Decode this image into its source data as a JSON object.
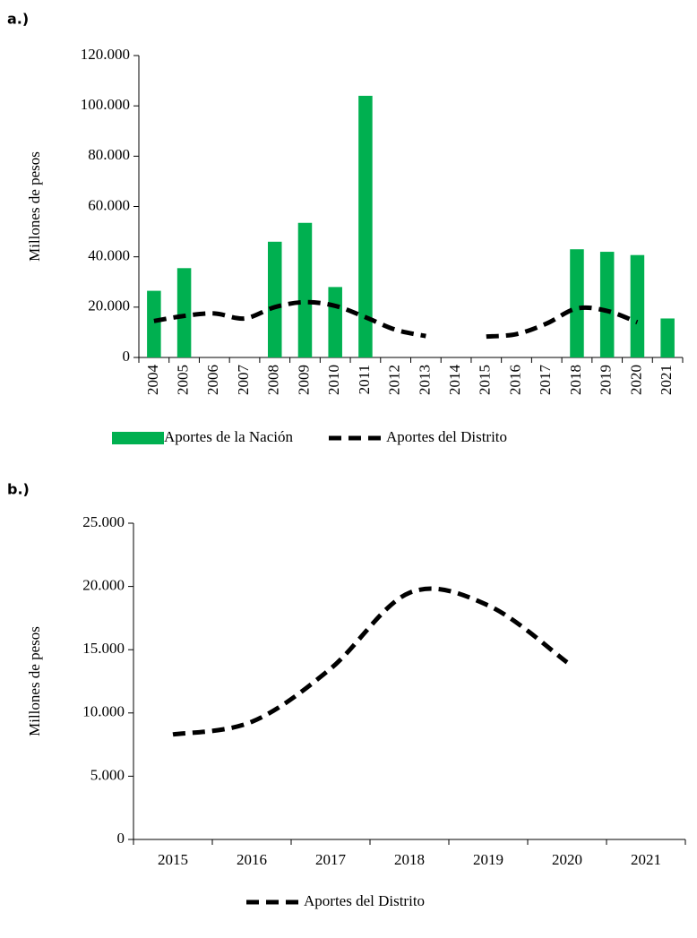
{
  "chart_data": [
    {
      "type": "bar",
      "label": "a.)",
      "ylabel": "Millones de pesos",
      "categories": [
        "2004",
        "2005",
        "2006",
        "2007",
        "2008",
        "2009",
        "2010",
        "2011",
        "2012",
        "2013",
        "2014",
        "2015",
        "2016",
        "2017",
        "2018",
        "2019",
        "2020",
        "2021"
      ],
      "series": [
        {
          "name": "Aportes de la Nación",
          "type": "bar",
          "color": "#00b050",
          "values": [
            26500,
            35500,
            null,
            null,
            46000,
            53500,
            28000,
            104000,
            null,
            null,
            null,
            null,
            null,
            null,
            43000,
            42000,
            40700,
            15500
          ]
        },
        {
          "name": "Aportes del Distrito",
          "type": "line",
          "color": "#000000",
          "values": [
            14500,
            16500,
            17500,
            15500,
            20000,
            22000,
            20500,
            16000,
            11000,
            8500,
            null,
            8300,
            9300,
            13500,
            19500,
            18500,
            14000,
            null
          ]
        }
      ],
      "ylim": [
        0,
        120000
      ],
      "yticks": [
        0,
        {
          "value": 20000,
          "label": "20.000"
        },
        {
          "value": 40000,
          "label": "40.000"
        },
        {
          "value": 60000,
          "label": "60.000"
        },
        {
          "value": 80000,
          "label": "80.000"
        },
        {
          "value": 100000,
          "label": "100.000"
        },
        {
          "value": 120000,
          "label": "120.000"
        }
      ]
    },
    {
      "type": "line",
      "label": "b.)",
      "ylabel": "Millones de pesos",
      "categories": [
        "2015",
        "2016",
        "2017",
        "2018",
        "2019",
        "2020",
        "2021"
      ],
      "series": [
        {
          "name": "Aportes del Distrito",
          "type": "line",
          "color": "#000000",
          "values": [
            8300,
            9300,
            13500,
            19500,
            18500,
            14000,
            null
          ]
        }
      ],
      "ylim": [
        0,
        25000
      ],
      "yticks": [
        0,
        {
          "value": 5000,
          "label": "5.000"
        },
        {
          "value": 10000,
          "label": "10.000"
        },
        {
          "value": 15000,
          "label": "15.000"
        },
        {
          "value": 20000,
          "label": "20.000"
        },
        {
          "value": 25000,
          "label": "25.000"
        }
      ]
    }
  ]
}
